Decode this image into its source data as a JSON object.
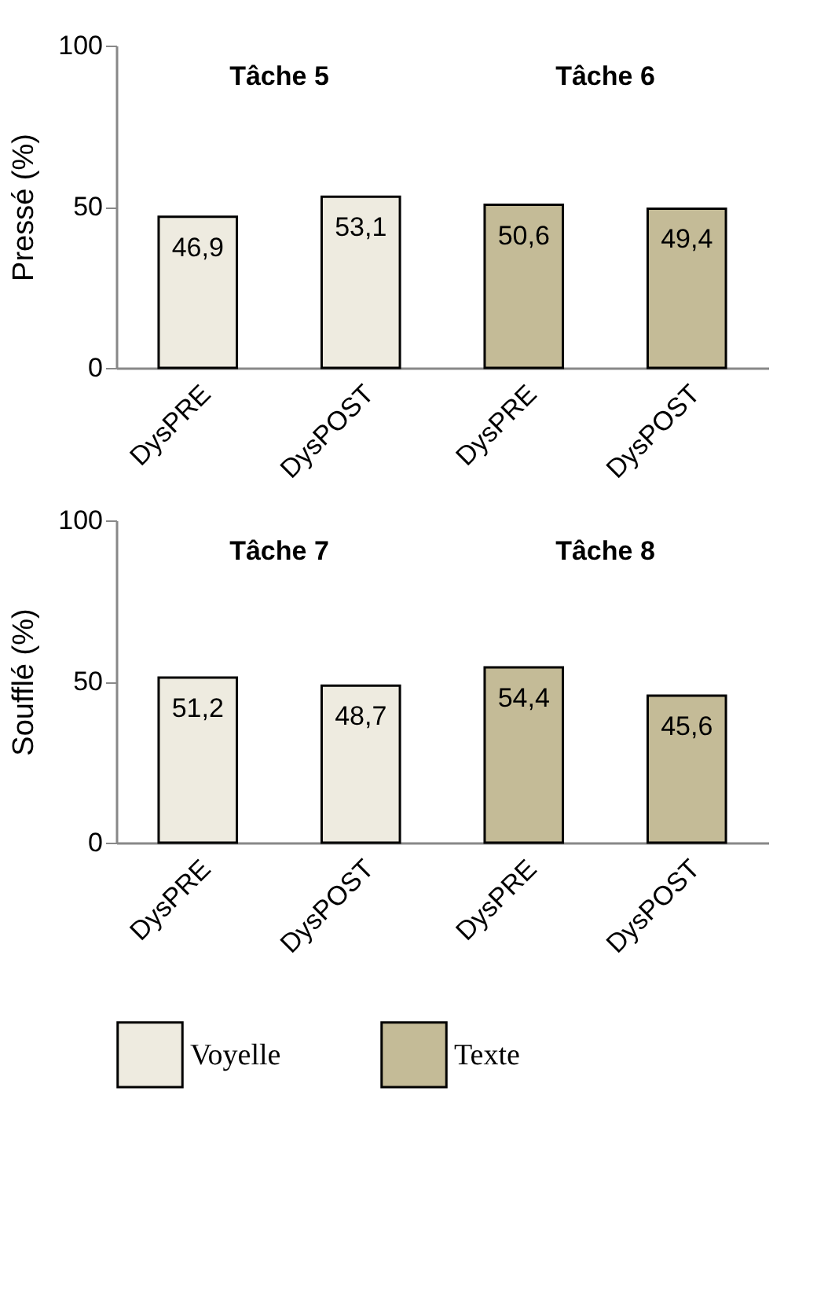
{
  "chart_data": [
    {
      "type": "bar",
      "ylabel": "Pressé (%)",
      "categories": [
        "DysPRE",
        "DysPOST",
        "DysPRE",
        "DysPOST"
      ],
      "ylim": [
        0,
        100
      ],
      "yticks": [
        0,
        50,
        100
      ],
      "grid": false,
      "legend": "bottom",
      "annotations": [
        "Tâche 5",
        "Tâche 6"
      ],
      "series": [
        {
          "name": "Voyelle",
          "color": "#eeebe0",
          "values": [
            46.9,
            53.1,
            null,
            null
          ],
          "value_labels": [
            "46,9",
            "53,1",
            null,
            null
          ]
        },
        {
          "name": "Texte",
          "color": "#c4bb97",
          "values": [
            null,
            null,
            50.6,
            49.4
          ],
          "value_labels": [
            null,
            null,
            "50,6",
            "49,4"
          ]
        }
      ]
    },
    {
      "type": "bar",
      "ylabel": "Soufflé (%)",
      "categories": [
        "DysPRE",
        "DysPOST",
        "DysPRE",
        "DysPOST"
      ],
      "ylim": [
        0,
        100
      ],
      "yticks": [
        0,
        50,
        100
      ],
      "grid": false,
      "legend": "bottom",
      "annotations": [
        "Tâche 7",
        "Tâche 8"
      ],
      "series": [
        {
          "name": "Voyelle",
          "color": "#eeebe0",
          "values": [
            51.2,
            48.7,
            null,
            null
          ],
          "value_labels": [
            "51,2",
            "48,7",
            null,
            null
          ]
        },
        {
          "name": "Texte",
          "color": "#c4bb97",
          "values": [
            null,
            null,
            54.4,
            45.6
          ],
          "value_labels": [
            null,
            null,
            "54,4",
            "45,6"
          ]
        }
      ]
    }
  ]
}
